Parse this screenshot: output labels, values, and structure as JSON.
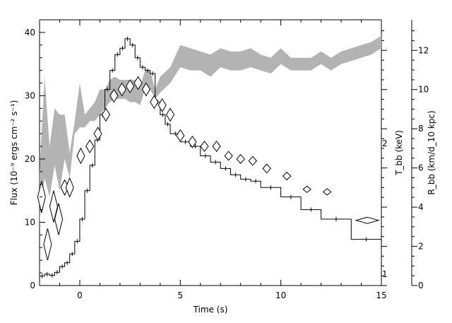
{
  "chart_data": {
    "type": "line",
    "xlabel": "Time (s)",
    "ylabel_left": "Flux (10⁻⁹ ergs cm⁻² s⁻¹)",
    "ylabel_right_inner": "T_bb (keV)",
    "ylabel_right_outer": "R_bb (km/d_10 kpc)",
    "xlim": [
      -2,
      15
    ],
    "ylim_flux": [
      0,
      42
    ],
    "x_ticks": [
      "0",
      "5",
      "10",
      "15"
    ],
    "y_ticks_flux": [
      "0",
      "10",
      "20",
      "30",
      "40"
    ],
    "y_ticks_R": [
      "0",
      "2",
      "4",
      "6",
      "8",
      "10",
      "12"
    ],
    "y_ticks_T": [
      "1",
      "2"
    ],
    "series": [
      {
        "style": "histogram",
        "edges": [
          -2,
          -1.75,
          -1.5,
          -1.25,
          -1,
          -0.75,
          -0.5,
          -0.25,
          0,
          0.25,
          0.5,
          0.75,
          1,
          1.25,
          1.5,
          1.75,
          2,
          2.25,
          2.5,
          2.75,
          3,
          3.25,
          3.5,
          3.75,
          4,
          4.25,
          4.5,
          5,
          5.5,
          6,
          6.5,
          7,
          7.5,
          8,
          8.5,
          9,
          10,
          11,
          12,
          13.5,
          15
        ],
        "values": [
          1.5,
          1.8,
          1.6,
          2.1,
          3,
          3.6,
          5,
          7,
          10.5,
          15,
          19,
          23,
          27,
          31,
          34,
          36.5,
          37.5,
          39,
          38,
          36,
          34.5,
          34,
          33.5,
          29,
          27,
          25.5,
          24,
          22.7,
          22,
          20.5,
          19.5,
          18.5,
          17.5,
          16.8,
          16.5,
          15.5,
          14,
          12,
          10.5,
          7.3
        ]
      },
      {
        "style": "diamonds",
        "points": [
          {
            "x": -1.9,
            "y": 14,
            "dy": 2.5
          },
          {
            "x": -1.6,
            "y": 6.5,
            "dy": 2.5
          },
          {
            "x": -1.3,
            "y": 12.5,
            "dy": 2.5
          },
          {
            "x": -1.05,
            "y": 10.5,
            "dy": 2.5
          },
          {
            "x": -0.75,
            "y": 15.5,
            "dy": 1.2
          },
          {
            "x": -0.5,
            "y": 15.5,
            "dy": 1.5
          },
          {
            "x": 0.05,
            "y": 20.5,
            "dy": 1.2
          },
          {
            "x": 0.5,
            "y": 22,
            "dy": 1
          },
          {
            "x": 0.9,
            "y": 24,
            "dy": 1
          },
          {
            "x": 1.3,
            "y": 27,
            "dy": 1
          },
          {
            "x": 1.7,
            "y": 30,
            "dy": 1
          },
          {
            "x": 2.1,
            "y": 31,
            "dy": 1
          },
          {
            "x": 2.5,
            "y": 31.5,
            "dy": 1
          },
          {
            "x": 2.9,
            "y": 32,
            "dy": 1
          },
          {
            "x": 3.3,
            "y": 31,
            "dy": 1
          },
          {
            "x": 3.7,
            "y": 29,
            "dy": 1
          },
          {
            "x": 4.1,
            "y": 28.5,
            "dy": 1
          },
          {
            "x": 4.5,
            "y": 27,
            "dy": 1
          },
          {
            "x": 5,
            "y": 23.7,
            "dy": 0.9
          },
          {
            "x": 5.6,
            "y": 22.7,
            "dy": 0.9
          },
          {
            "x": 6.2,
            "y": 22,
            "dy": 0.8
          },
          {
            "x": 6.8,
            "y": 22,
            "dy": 0.8
          },
          {
            "x": 7.4,
            "y": 20.5,
            "dy": 0.7
          },
          {
            "x": 8,
            "y": 20,
            "dy": 0.7
          },
          {
            "x": 8.6,
            "y": 19.7,
            "dy": 0.7
          },
          {
            "x": 9.3,
            "y": 18.5,
            "dy": 0.7
          },
          {
            "x": 10.3,
            "y": 17.3,
            "dy": 0.6
          },
          {
            "x": 11.3,
            "y": 15.2,
            "dy": 0.5
          },
          {
            "x": 12.3,
            "y": 14.8,
            "dy": 0.5
          },
          {
            "x": 14.3,
            "y": 10.3,
            "dy": 0.5
          }
        ]
      },
      {
        "style": "band",
        "x": [
          -2,
          -1.75,
          -1.5,
          -1.25,
          -1,
          -0.75,
          -0.5,
          -0.25,
          0,
          0.25,
          0.5,
          0.75,
          1,
          1.25,
          1.5,
          1.75,
          2,
          2.25,
          2.5,
          2.75,
          3,
          3.25,
          3.5,
          3.75,
          4,
          4.5,
          5,
          5.5,
          6,
          6.5,
          7,
          7.5,
          8,
          8.5,
          9,
          9.5,
          10,
          10.5,
          11,
          11.5,
          12,
          12.5,
          13,
          13.5,
          14,
          14.5,
          15
        ],
        "upper": [
          18,
          33,
          22,
          28,
          27,
          27,
          21,
          26,
          32,
          27,
          28,
          29,
          31,
          31,
          32.5,
          33,
          32.5,
          32.5,
          32.5,
          32.5,
          31.5,
          34,
          34,
          31,
          33,
          34.5,
          38,
          37.5,
          37,
          36.5,
          37.5,
          37,
          37,
          37.5,
          36.5,
          36,
          37.5,
          36,
          36,
          36,
          37,
          36,
          37,
          37.5,
          38,
          38.5,
          39.5
        ],
        "lower": [
          10,
          17,
          14,
          19,
          15,
          20,
          17,
          24,
          25,
          25,
          26,
          26,
          27,
          28,
          29,
          29.5,
          29.5,
          29.5,
          29,
          29,
          28.5,
          31,
          31,
          29.5,
          30.5,
          32,
          34.5,
          34,
          34,
          33,
          34.5,
          34,
          34,
          34.5,
          34,
          33.5,
          35,
          34,
          34,
          34,
          35,
          34,
          35,
          35.5,
          36,
          36.5,
          37.5
        ]
      }
    ]
  }
}
